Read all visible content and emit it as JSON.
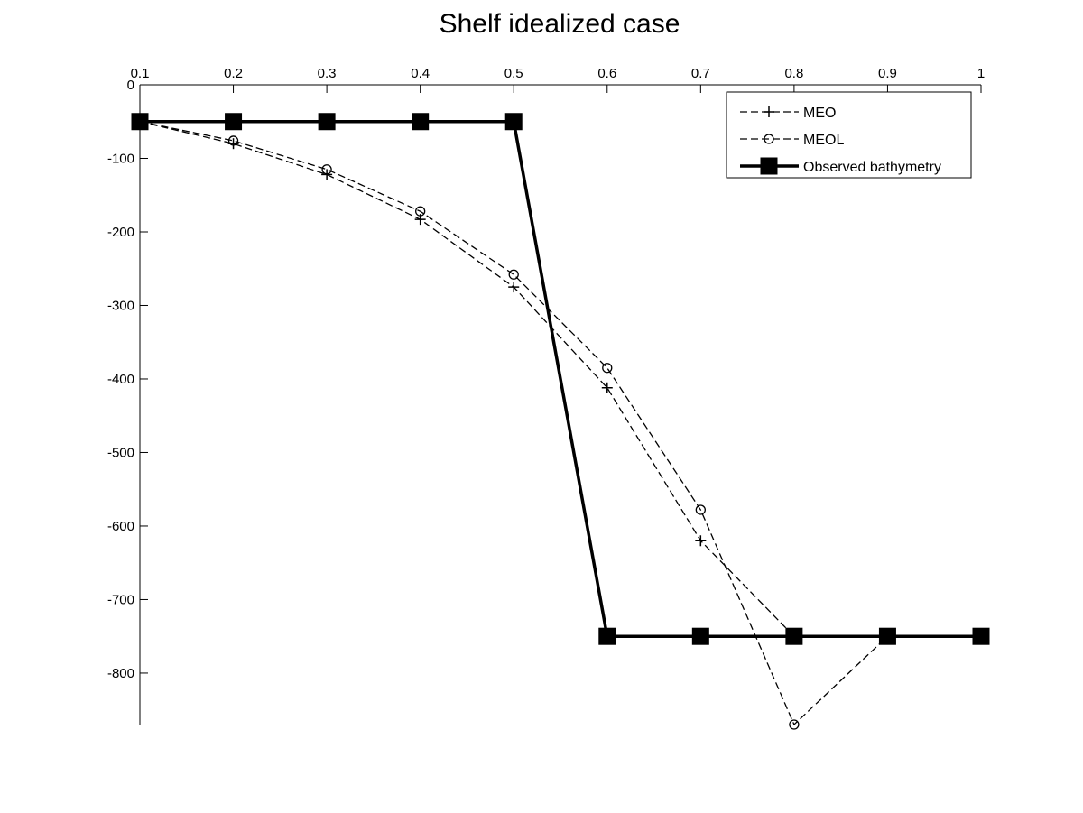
{
  "chart_data": {
    "type": "line",
    "title": "Shelf idealized case",
    "xlabel": "",
    "ylabel": "",
    "x_axis_position": "top",
    "xlim": [
      0.1,
      1
    ],
    "ylim": [
      -870,
      0
    ],
    "x_ticks": [
      0.1,
      0.2,
      0.3,
      0.4,
      0.5,
      0.6,
      0.7,
      0.8,
      0.9,
      1
    ],
    "x_tick_labels": [
      "0.1",
      "0.2",
      "0.3",
      "0.4",
      "0.5",
      "0.6",
      "0.7",
      "0.8",
      "0.9",
      "1"
    ],
    "y_ticks": [
      0,
      -100,
      -200,
      -300,
      -400,
      -500,
      -600,
      -700,
      -800
    ],
    "y_tick_labels": [
      "0",
      "-100",
      "-200",
      "-300",
      "-400",
      "-500",
      "-600",
      "-700",
      "-800"
    ],
    "grid": false,
    "legend_position": "top-right",
    "x": [
      0.1,
      0.2,
      0.3,
      0.4,
      0.5,
      0.6,
      0.7,
      0.8,
      0.9,
      1.0
    ],
    "series": [
      {
        "name": "MEO",
        "marker": "plus",
        "line_style": "dashed",
        "color": "#000000",
        "values": [
          -50,
          -80,
          -122,
          -183,
          -275,
          -412,
          -620,
          -750,
          -750,
          -750
        ]
      },
      {
        "name": "MEOL",
        "marker": "circle",
        "line_style": "dashed",
        "color": "#000000",
        "values": [
          -50,
          -76,
          -115,
          -172,
          -258,
          -385,
          -578,
          -870,
          -750,
          -750
        ]
      },
      {
        "name": "Observed bathymetry",
        "marker": "square",
        "line_style": "solid",
        "color": "#000000",
        "values": [
          -50,
          -50,
          -50,
          -50,
          -50,
          -750,
          -750,
          -750,
          -750,
          -750
        ]
      }
    ]
  }
}
